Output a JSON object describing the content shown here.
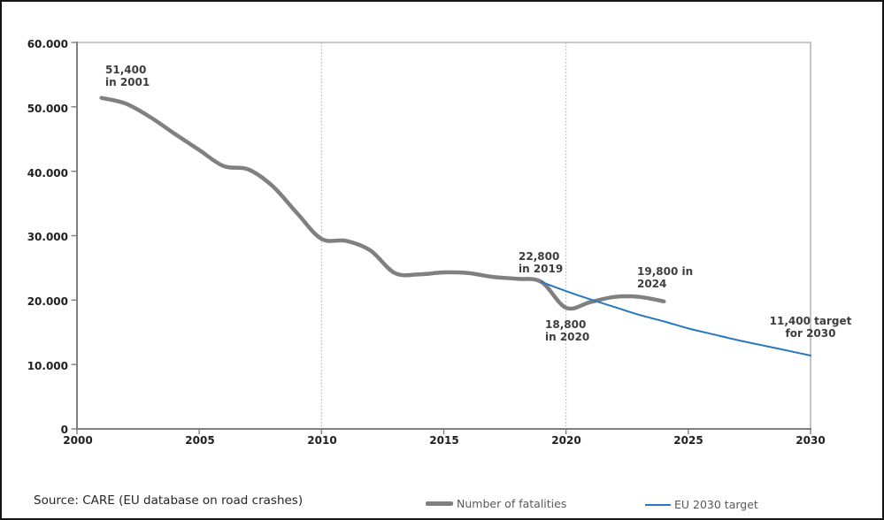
{
  "source_note": "Source: CARE (EU database on road crashes)",
  "colors": {
    "fatalities_line": "#808080",
    "target_line": "#2878BE",
    "gridline": "#ababab",
    "axis": "#7f7f7f",
    "plot_border": "#b5b5b5",
    "annotation_text": "#3d3d3d",
    "tick_text": "#1f1f1f",
    "legend_text": "#595959",
    "frame_border": "#141414"
  },
  "legend": {
    "items": [
      {
        "label": "Number of fatalities",
        "color": "#808080"
      },
      {
        "label": "EU 2030 target",
        "color": "#2878BE"
      }
    ]
  },
  "chart_data": {
    "type": "line",
    "title": "",
    "xlabel": "",
    "ylabel": "",
    "xlim": [
      2000,
      2030
    ],
    "ylim": [
      0,
      60000
    ],
    "x_ticks": [
      2000,
      2005,
      2010,
      2015,
      2020,
      2025,
      2030
    ],
    "x_tick_labels": [
      "2000",
      "2005",
      "2010",
      "2015",
      "2020",
      "2025",
      "2030"
    ],
    "y_ticks": [
      60000,
      50000,
      40000,
      30000,
      20000,
      10000,
      0
    ],
    "y_tick_labels": [
      "60.000",
      "50.000",
      "40.000",
      "30.000",
      "20.000",
      "10.000",
      "0"
    ],
    "grid": "vertical dotted gridlines only",
    "gridline_years": [
      2010,
      2020
    ],
    "legend_position": "bottom",
    "series": [
      {
        "name": "Number of fatalities",
        "color": "#808080",
        "stroke_width": 4.5,
        "x": [
          2001,
          2002,
          2003,
          2004,
          2005,
          2006,
          2007,
          2008,
          2009,
          2010,
          2011,
          2012,
          2013,
          2014,
          2015,
          2016,
          2017,
          2018,
          2019,
          2020,
          2021,
          2022,
          2023,
          2024
        ],
        "values": [
          51400,
          50500,
          48400,
          45800,
          43300,
          40800,
          40300,
          37700,
          33500,
          29500,
          29200,
          27700,
          24200,
          24000,
          24300,
          24200,
          23600,
          23300,
          22800,
          18800,
          19700,
          20500,
          20500,
          19800
        ]
      },
      {
        "name": "EU 2030 target",
        "color": "#2878BE",
        "stroke_width": 2,
        "x": [
          2019,
          2020,
          2021,
          2022,
          2023,
          2024,
          2025,
          2026,
          2027,
          2028,
          2029,
          2030
        ],
        "values": [
          22800,
          21400,
          20100,
          18900,
          17700,
          16700,
          15600,
          14700,
          13800,
          13000,
          12200,
          11400
        ]
      }
    ],
    "annotations": [
      {
        "year": 2001,
        "value": 51400,
        "lines": [
          "51,400",
          "in 2001"
        ]
      },
      {
        "year": 2019,
        "value": 22800,
        "lines": [
          "22,800",
          "in 2019"
        ]
      },
      {
        "year": 2020,
        "value": 18800,
        "lines": [
          "18,800",
          "in 2020"
        ]
      },
      {
        "year": 2024,
        "value": 19800,
        "lines": [
          "19,800 in",
          "2024"
        ]
      },
      {
        "year": 2030,
        "value": 11400,
        "lines": [
          "11,400 target",
          "for 2030"
        ]
      }
    ]
  }
}
